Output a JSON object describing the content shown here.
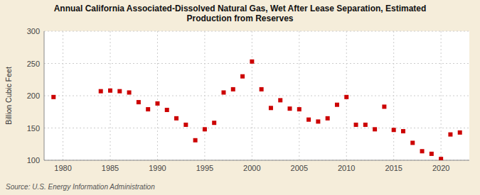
{
  "chart_data": {
    "type": "scatter",
    "title": "Annual California Associated-Dissolved Natural Gas, Wet After Lease Separation, Estimated\nProduction from Reserves",
    "ylabel": "Billion Cubic Feet",
    "annotations": [
      "Source: U.S. Energy Information Administration"
    ],
    "color": "#cc0000",
    "marker": "square",
    "grid": true,
    "xlim": [
      1978,
      2023
    ],
    "ylim": [
      100,
      300
    ],
    "xticks": [
      1980,
      1985,
      1990,
      1995,
      2000,
      2005,
      2010,
      2015,
      2020
    ],
    "yticks": [
      100,
      150,
      200,
      250,
      300
    ],
    "x": [
      1979,
      1984,
      1985,
      1986,
      1987,
      1988,
      1989,
      1990,
      1991,
      1992,
      1993,
      1994,
      1995,
      1996,
      1997,
      1998,
      1999,
      2000,
      2001,
      2002,
      2003,
      2004,
      2005,
      2006,
      2007,
      2008,
      2009,
      2010,
      2011,
      2012,
      2013,
      2014,
      2015,
      2016,
      2017,
      2018,
      2019,
      2020,
      2021,
      2022
    ],
    "values": [
      198,
      207,
      208,
      207,
      205,
      190,
      179,
      188,
      178,
      165,
      155,
      131,
      148,
      158,
      205,
      210,
      230,
      253,
      210,
      181,
      193,
      180,
      179,
      163,
      160,
      165,
      186,
      198,
      155,
      155,
      148,
      183,
      147,
      145,
      127,
      114,
      110,
      102,
      140,
      143
    ]
  }
}
